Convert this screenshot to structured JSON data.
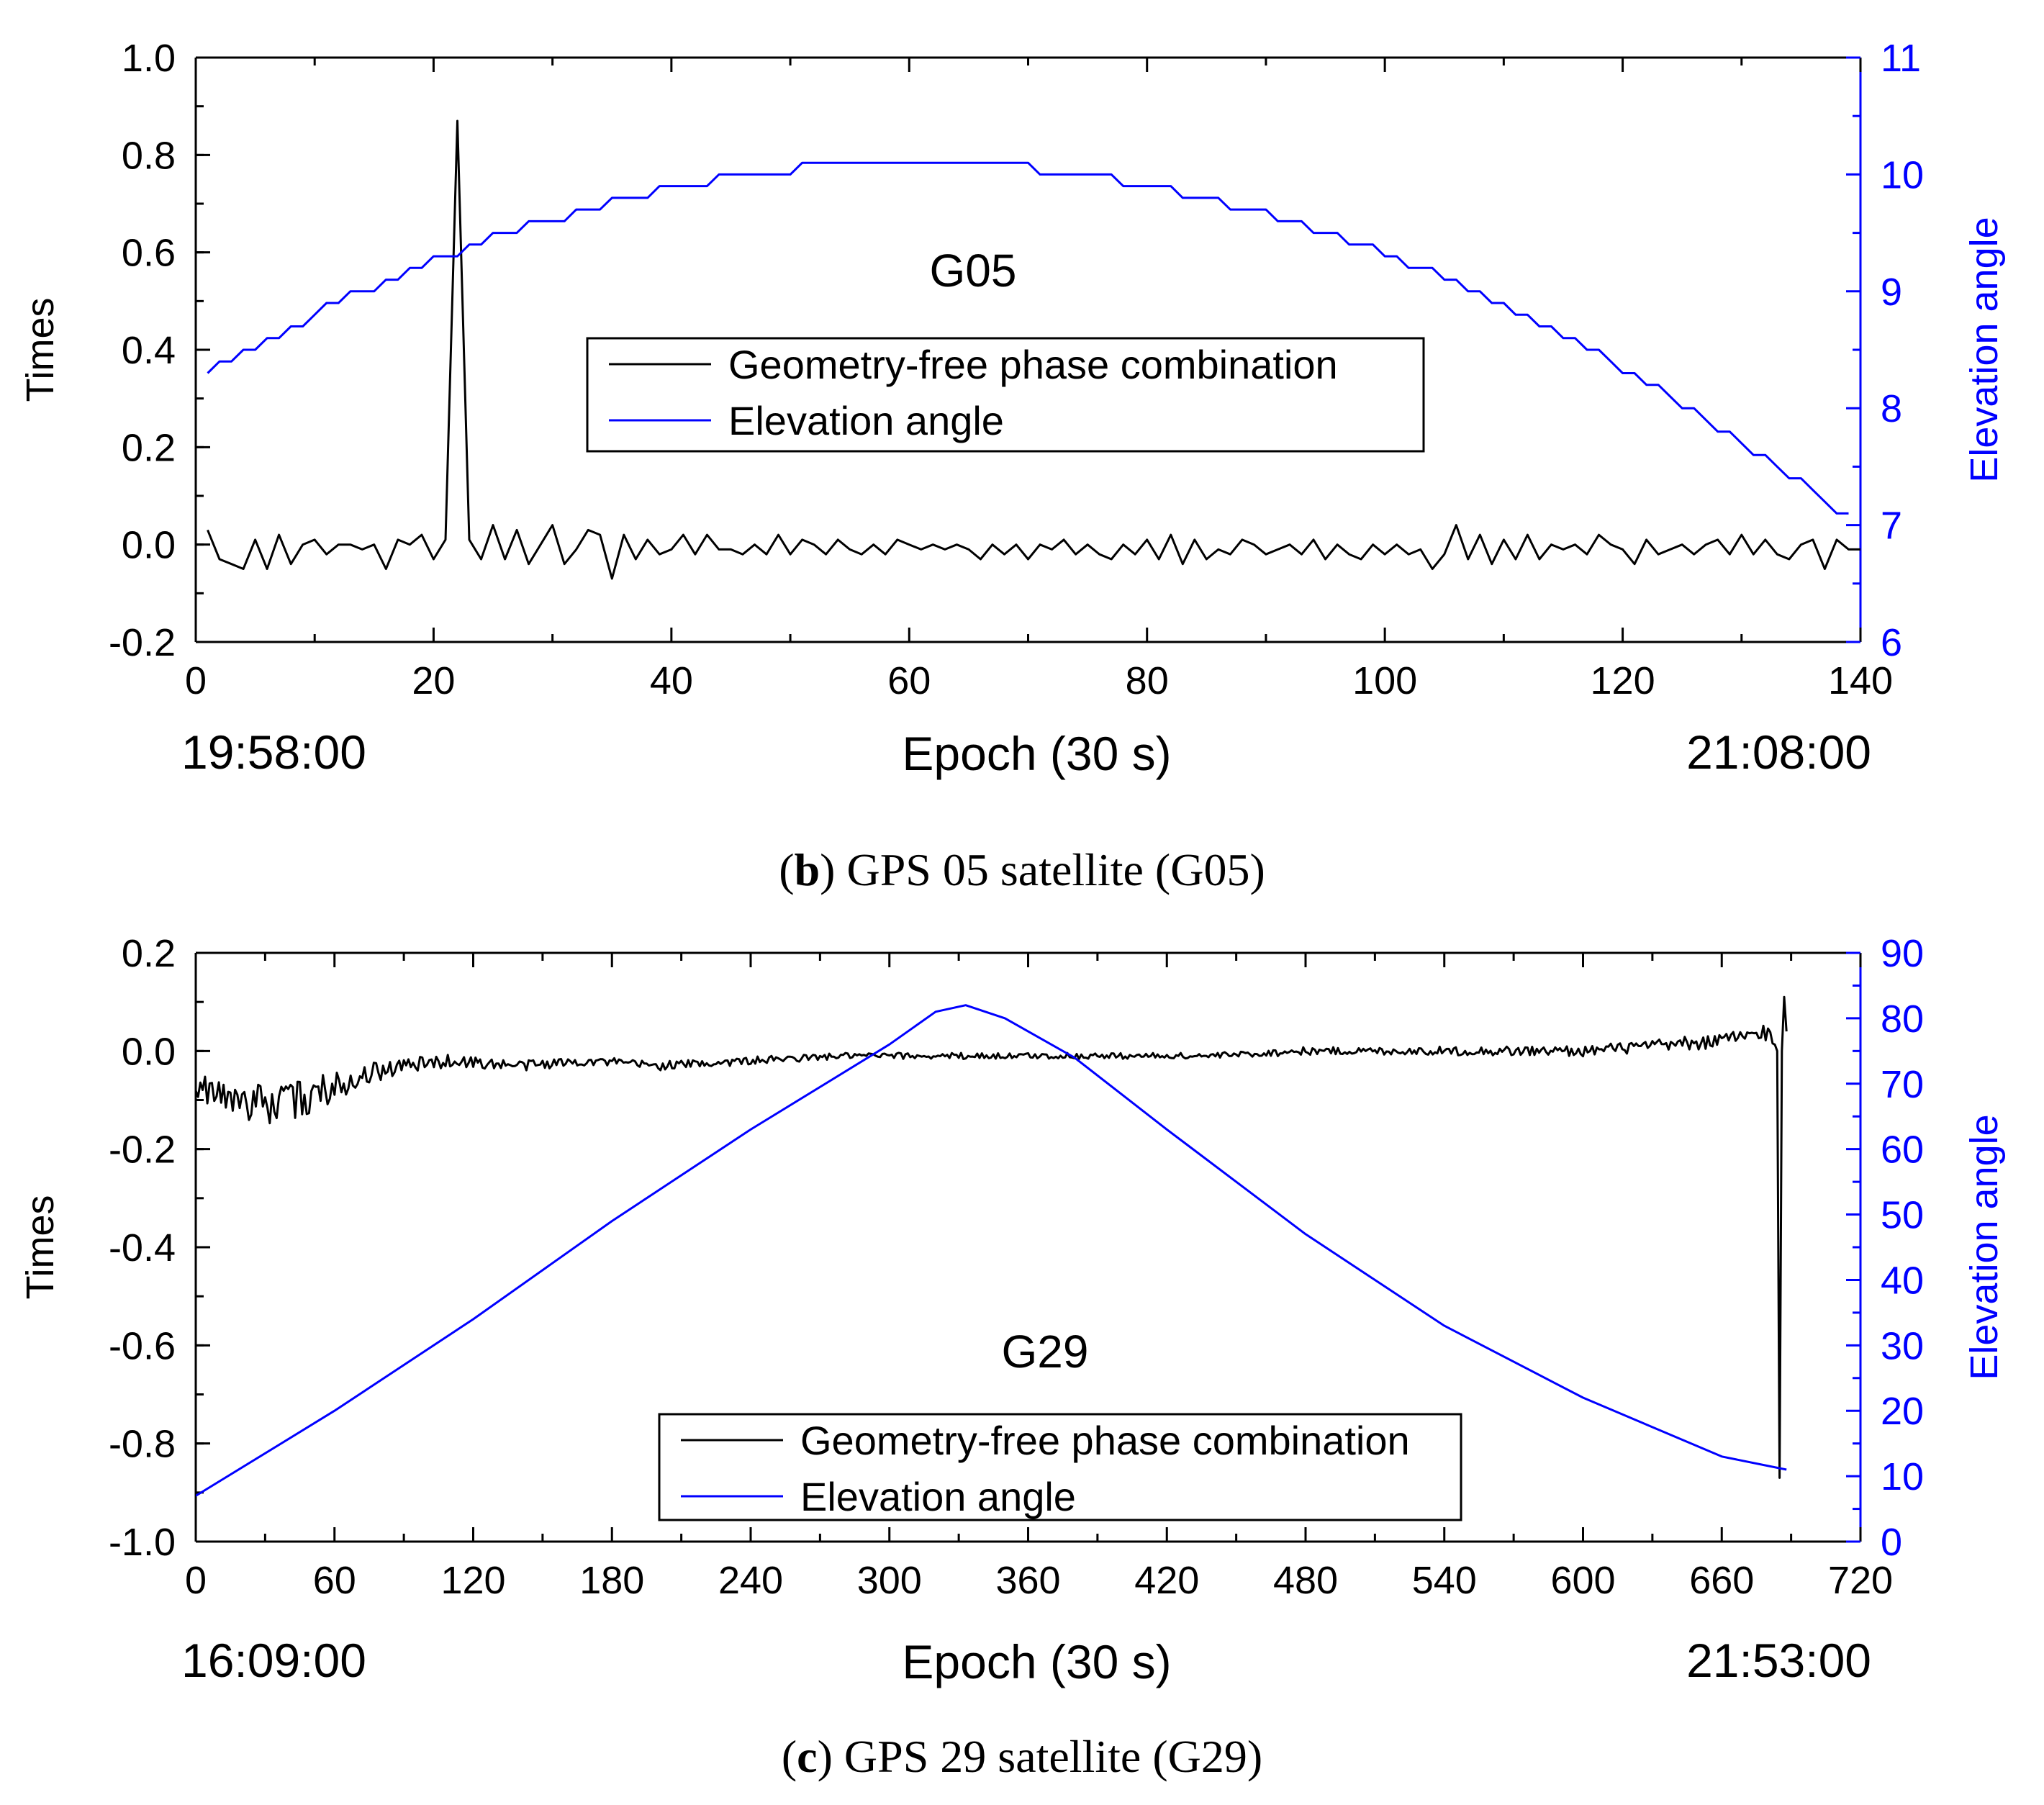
{
  "chart_data": [
    {
      "type": "line",
      "panel": "b",
      "annotation": "G05",
      "caption": {
        "letter": "b",
        "paren_open": "(",
        "paren_close": ")",
        "text": " GPS 05 satellite (G05)"
      },
      "xlabel": "Epoch (30 s)",
      "ylabel": "Times",
      "y2label": "Elevation angle",
      "time_start": "19:58:00",
      "time_end": "21:08:00",
      "xlim": [
        0,
        140
      ],
      "xticks": [
        0,
        20,
        40,
        60,
        80,
        100,
        120,
        140
      ],
      "xminor_step": 10,
      "ylim": [
        -0.2,
        1.0
      ],
      "yticks": [
        "-0.2",
        "0.0",
        "0.2",
        "0.4",
        "0.6",
        "0.8",
        "1.0"
      ],
      "yminor_step": 0.1,
      "y2lim": [
        6,
        11
      ],
      "y2ticks": [
        6,
        7,
        8,
        9,
        10,
        11
      ],
      "y2minor_step": 0.5,
      "legend_position": "center",
      "series": [
        {
          "name": "Geometry-free phase combination",
          "axis": "left",
          "color": "#000000",
          "x_start": 1,
          "x_step": 1,
          "values": [
            0.03,
            -0.03,
            -0.04,
            -0.05,
            0.01,
            -0.05,
            0.02,
            -0.04,
            0.0,
            0.01,
            -0.02,
            0.0,
            0.0,
            -0.01,
            0.0,
            -0.05,
            0.01,
            0.0,
            0.02,
            -0.03,
            0.01,
            0.87,
            0.01,
            -0.03,
            0.04,
            -0.03,
            0.03,
            -0.04,
            0.0,
            0.04,
            -0.04,
            -0.01,
            0.03,
            0.02,
            -0.07,
            0.02,
            -0.03,
            0.01,
            -0.02,
            -0.01,
            0.02,
            -0.02,
            0.02,
            -0.01,
            -0.01,
            -0.02,
            0.0,
            -0.02,
            0.02,
            -0.02,
            0.01,
            0.0,
            -0.02,
            0.01,
            -0.01,
            -0.02,
            0.0,
            -0.02,
            0.01,
            0.0,
            -0.01,
            0.0,
            -0.01,
            0.0,
            -0.01,
            -0.03,
            0.0,
            -0.02,
            0.0,
            -0.03,
            0.0,
            -0.01,
            0.01,
            -0.02,
            0.0,
            -0.02,
            -0.03,
            0.0,
            -0.02,
            0.01,
            -0.03,
            0.02,
            -0.04,
            0.01,
            -0.03,
            -0.01,
            -0.02,
            0.01,
            0.0,
            -0.02,
            -0.01,
            0.0,
            -0.02,
            0.01,
            -0.03,
            0.0,
            -0.02,
            -0.03,
            0.0,
            -0.02,
            0.0,
            -0.02,
            -0.01,
            -0.05,
            -0.02,
            0.04,
            -0.03,
            0.02,
            -0.04,
            0.01,
            -0.03,
            0.02,
            -0.03,
            0.0,
            -0.01,
            0.0,
            -0.02,
            0.02,
            0.0,
            -0.01,
            -0.04,
            0.01,
            -0.02,
            -0.01,
            0.0,
            -0.02,
            0.0,
            0.01,
            -0.02,
            0.02,
            -0.02,
            0.01,
            -0.02,
            -0.03,
            0.0,
            0.01,
            -0.05,
            0.01,
            -0.01,
            -0.01
          ]
        },
        {
          "name": "Elevation angle",
          "axis": "right",
          "color": "#0000ff",
          "x_start": 1,
          "x_step": 1,
          "values": [
            8.3,
            8.4,
            8.4,
            8.5,
            8.5,
            8.6,
            8.6,
            8.7,
            8.7,
            8.8,
            8.9,
            8.9,
            9.0,
            9.0,
            9.0,
            9.1,
            9.1,
            9.2,
            9.2,
            9.3,
            9.3,
            9.3,
            9.4,
            9.4,
            9.5,
            9.5,
            9.5,
            9.6,
            9.6,
            9.6,
            9.6,
            9.7,
            9.7,
            9.7,
            9.8,
            9.8,
            9.8,
            9.8,
            9.9,
            9.9,
            9.9,
            9.9,
            9.9,
            10.0,
            10.0,
            10.0,
            10.0,
            10.0,
            10.0,
            10.0,
            10.1,
            10.1,
            10.1,
            10.1,
            10.1,
            10.1,
            10.1,
            10.1,
            10.1,
            10.1,
            10.1,
            10.1,
            10.1,
            10.1,
            10.1,
            10.1,
            10.1,
            10.1,
            10.1,
            10.1,
            10.0,
            10.0,
            10.0,
            10.0,
            10.0,
            10.0,
            10.0,
            9.9,
            9.9,
            9.9,
            9.9,
            9.9,
            9.8,
            9.8,
            9.8,
            9.8,
            9.7,
            9.7,
            9.7,
            9.7,
            9.6,
            9.6,
            9.6,
            9.5,
            9.5,
            9.5,
            9.4,
            9.4,
            9.4,
            9.3,
            9.3,
            9.2,
            9.2,
            9.2,
            9.1,
            9.1,
            9.0,
            9.0,
            8.9,
            8.9,
            8.8,
            8.8,
            8.7,
            8.7,
            8.6,
            8.6,
            8.5,
            8.5,
            8.4,
            8.3,
            8.3,
            8.2,
            8.2,
            8.1,
            8.0,
            8.0,
            7.9,
            7.8,
            7.8,
            7.7,
            7.6,
            7.6,
            7.5,
            7.4,
            7.4,
            7.3,
            7.2,
            7.1,
            7.1
          ]
        }
      ]
    },
    {
      "type": "line",
      "panel": "c",
      "annotation": "G29",
      "caption": {
        "letter": "c",
        "paren_open": "(",
        "paren_close": ")",
        "text": " GPS 29 satellite (G29)"
      },
      "xlabel": "Epoch (30 s)",
      "ylabel": "Times",
      "y2label": "Elevation angle",
      "time_start": "16:09:00",
      "time_end": "21:53:00",
      "xlim": [
        0,
        720
      ],
      "xticks": [
        0,
        60,
        120,
        180,
        240,
        300,
        360,
        420,
        480,
        540,
        600,
        660,
        720
      ],
      "xminor_step": 30,
      "ylim": [
        -1.0,
        0.2
      ],
      "yticks": [
        "-1.0",
        "-0.8",
        "-0.6",
        "-0.4",
        "-0.2",
        "0.0",
        "0.2"
      ],
      "yminor_step": 0.1,
      "y2lim": [
        0,
        90
      ],
      "y2ticks": [
        0,
        10,
        20,
        30,
        40,
        50,
        60,
        70,
        80,
        90
      ],
      "y2minor_step": 5,
      "legend_position": "lower-center",
      "series": [
        {
          "name": "Geometry-free phase combination",
          "axis": "left",
          "color": "#000000",
          "x": [
            0,
            10,
            20,
            30,
            40,
            55,
            70,
            90,
            110,
            140,
            170,
            200,
            240,
            280,
            320,
            360,
            400,
            440,
            480,
            520,
            560,
            600,
            630,
            660,
            680,
            684,
            685,
            686,
            687,
            688
          ],
          "y": [
            -0.07,
            -0.09,
            -0.1,
            -0.11,
            -0.11,
            -0.08,
            -0.05,
            -0.03,
            -0.02,
            -0.03,
            -0.02,
            -0.03,
            -0.02,
            -0.01,
            -0.01,
            -0.01,
            -0.01,
            -0.01,
            0.0,
            0.0,
            0.0,
            0.0,
            0.01,
            0.02,
            0.04,
            0.0,
            -0.87,
            0.0,
            0.11,
            0.04
          ],
          "noise": [
            0.015,
            0.02,
            0.025,
            0.025,
            0.03,
            0.025,
            0.015,
            0.01,
            0.008,
            0.007,
            0.006,
            0.006,
            0.005,
            0.004,
            0.004,
            0.004,
            0.004,
            0.004,
            0.005,
            0.005,
            0.006,
            0.007,
            0.008,
            0.01,
            0.012,
            0,
            0,
            0,
            0,
            0
          ]
        },
        {
          "name": "Elevation angle",
          "axis": "right",
          "color": "#0000ff",
          "x": [
            0,
            60,
            120,
            180,
            240,
            300,
            320,
            333,
            350,
            380,
            420,
            480,
            540,
            600,
            660,
            688
          ],
          "y": [
            7,
            20,
            34,
            49,
            63,
            76,
            81,
            82,
            80,
            74,
            63,
            47,
            33,
            22,
            13,
            11
          ]
        }
      ]
    }
  ]
}
